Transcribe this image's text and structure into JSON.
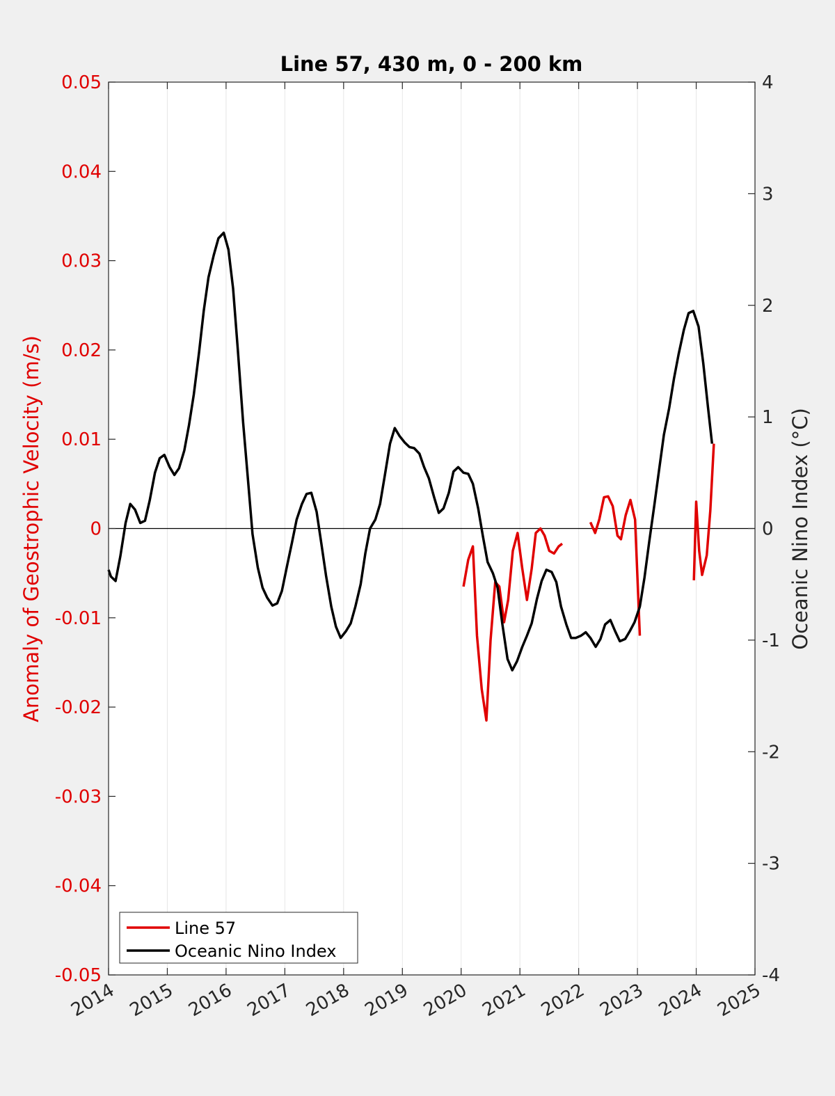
{
  "chart_data": {
    "type": "line",
    "title": "Line 57, 430 m, 0 - 200 km",
    "xlabel": "",
    "xlim": [
      2014,
      2025
    ],
    "x_ticks": [
      "2014",
      "2015",
      "2016",
      "2017",
      "2018",
      "2019",
      "2020",
      "2021",
      "2022",
      "2023",
      "2024",
      "2025"
    ],
    "y_left": {
      "label": "Anomaly of Geostrophic Velocity (m/s)",
      "color": "#e00000",
      "lim": [
        -0.05,
        0.05
      ],
      "ticks": [
        "0.05",
        "0.04",
        "0.03",
        "0.02",
        "0.01",
        "0",
        "-0.01",
        "-0.02",
        "-0.03",
        "-0.04",
        "-0.05"
      ]
    },
    "y_right": {
      "label": "Oceanic Nino Index (°C)",
      "color": "#262626",
      "lim": [
        -4,
        4
      ],
      "ticks": [
        "4",
        "3",
        "2",
        "1",
        "0",
        "-1",
        "-2",
        "-3",
        "-4"
      ]
    },
    "grid": "vertical",
    "zero_line": true,
    "legend": {
      "placement": "bottom-left"
    },
    "series": [
      {
        "name": "Line 57",
        "axis": "left",
        "color": "#e00000",
        "segments": [
          [
            [
              2020.04,
              -0.0065
            ],
            [
              2020.12,
              -0.0035
            ],
            [
              2020.2,
              -0.002
            ],
            [
              2020.27,
              -0.012
            ],
            [
              2020.35,
              -0.018
            ],
            [
              2020.43,
              -0.0215
            ],
            [
              2020.5,
              -0.0125
            ],
            [
              2020.58,
              -0.006
            ],
            [
              2020.65,
              -0.0065
            ],
            [
              2020.73,
              -0.0105
            ],
            [
              2020.8,
              -0.008
            ],
            [
              2020.88,
              -0.0025
            ],
            [
              2020.96,
              -0.0005
            ],
            [
              2021.04,
              -0.0045
            ],
            [
              2021.12,
              -0.008
            ],
            [
              2021.2,
              -0.0045
            ],
            [
              2021.27,
              -0.0005
            ],
            [
              2021.35,
              0.0
            ],
            [
              2021.42,
              -0.0008
            ],
            [
              2021.5,
              -0.0025
            ],
            [
              2021.58,
              -0.0028
            ],
            [
              2021.66,
              -0.002
            ],
            [
              2021.72,
              -0.0017
            ]
          ],
          [
            [
              2022.2,
              0.0007
            ],
            [
              2022.28,
              -0.0005
            ],
            [
              2022.35,
              0.001
            ],
            [
              2022.43,
              0.0035
            ],
            [
              2022.5,
              0.0036
            ],
            [
              2022.58,
              0.0025
            ],
            [
              2022.66,
              -0.0008
            ],
            [
              2022.72,
              -0.0012
            ],
            [
              2022.8,
              0.0015
            ],
            [
              2022.88,
              0.0032
            ],
            [
              2022.96,
              0.001
            ],
            [
              2023.04,
              -0.012
            ]
          ],
          [
            [
              2023.96,
              -0.0058
            ],
            [
              2024.0,
              0.003
            ],
            [
              2024.05,
              -0.0025
            ],
            [
              2024.1,
              -0.0052
            ],
            [
              2024.18,
              -0.003
            ],
            [
              2024.24,
              0.002
            ],
            [
              2024.3,
              0.0095
            ]
          ]
        ]
      },
      {
        "name": "Oceanic Nino Index",
        "axis": "right",
        "color": "#000000",
        "segments": [
          [
            [
              2014.0,
              -0.37
            ],
            [
              2014.04,
              -0.43
            ],
            [
              2014.12,
              -0.47
            ],
            [
              2014.2,
              -0.25
            ],
            [
              2014.29,
              0.05
            ],
            [
              2014.37,
              0.22
            ],
            [
              2014.45,
              0.17
            ],
            [
              2014.54,
              0.05
            ],
            [
              2014.62,
              0.07
            ],
            [
              2014.7,
              0.25
            ],
            [
              2014.79,
              0.5
            ],
            [
              2014.87,
              0.63
            ],
            [
              2014.95,
              0.66
            ],
            [
              2015.04,
              0.55
            ],
            [
              2015.12,
              0.48
            ],
            [
              2015.2,
              0.54
            ],
            [
              2015.29,
              0.7
            ],
            [
              2015.37,
              0.93
            ],
            [
              2015.45,
              1.2
            ],
            [
              2015.54,
              1.58
            ],
            [
              2015.62,
              1.95
            ],
            [
              2015.7,
              2.25
            ],
            [
              2015.79,
              2.45
            ],
            [
              2015.87,
              2.6
            ],
            [
              2015.96,
              2.65
            ],
            [
              2016.04,
              2.5
            ],
            [
              2016.12,
              2.15
            ],
            [
              2016.2,
              1.6
            ],
            [
              2016.29,
              0.95
            ],
            [
              2016.37,
              0.45
            ],
            [
              2016.45,
              -0.05
            ],
            [
              2016.54,
              -0.35
            ],
            [
              2016.62,
              -0.53
            ],
            [
              2016.7,
              -0.62
            ],
            [
              2016.79,
              -0.69
            ],
            [
              2016.87,
              -0.67
            ],
            [
              2016.95,
              -0.56
            ],
            [
              2017.04,
              -0.33
            ],
            [
              2017.12,
              -0.13
            ],
            [
              2017.2,
              0.08
            ],
            [
              2017.29,
              0.22
            ],
            [
              2017.37,
              0.31
            ],
            [
              2017.45,
              0.32
            ],
            [
              2017.54,
              0.15
            ],
            [
              2017.62,
              -0.13
            ],
            [
              2017.7,
              -0.42
            ],
            [
              2017.79,
              -0.7
            ],
            [
              2017.87,
              -0.88
            ],
            [
              2017.95,
              -0.98
            ],
            [
              2018.04,
              -0.92
            ],
            [
              2018.12,
              -0.85
            ],
            [
              2018.2,
              -0.7
            ],
            [
              2018.29,
              -0.5
            ],
            [
              2018.37,
              -0.22
            ],
            [
              2018.45,
              0.0
            ],
            [
              2018.54,
              0.08
            ],
            [
              2018.62,
              0.22
            ],
            [
              2018.7,
              0.47
            ],
            [
              2018.79,
              0.76
            ],
            [
              2018.87,
              0.9
            ],
            [
              2018.95,
              0.83
            ],
            [
              2019.04,
              0.77
            ],
            [
              2019.12,
              0.73
            ],
            [
              2019.2,
              0.72
            ],
            [
              2019.29,
              0.67
            ],
            [
              2019.37,
              0.55
            ],
            [
              2019.45,
              0.45
            ],
            [
              2019.54,
              0.28
            ],
            [
              2019.62,
              0.14
            ],
            [
              2019.7,
              0.18
            ],
            [
              2019.79,
              0.32
            ],
            [
              2019.87,
              0.51
            ],
            [
              2019.95,
              0.55
            ],
            [
              2020.04,
              0.5
            ],
            [
              2020.12,
              0.49
            ],
            [
              2020.2,
              0.4
            ],
            [
              2020.29,
              0.18
            ],
            [
              2020.37,
              -0.07
            ],
            [
              2020.45,
              -0.3
            ],
            [
              2020.54,
              -0.4
            ],
            [
              2020.62,
              -0.53
            ],
            [
              2020.7,
              -0.85
            ],
            [
              2020.79,
              -1.17
            ],
            [
              2020.87,
              -1.27
            ],
            [
              2020.95,
              -1.19
            ],
            [
              2021.04,
              -1.06
            ],
            [
              2021.12,
              -0.96
            ],
            [
              2021.2,
              -0.85
            ],
            [
              2021.29,
              -0.63
            ],
            [
              2021.37,
              -0.47
            ],
            [
              2021.45,
              -0.37
            ],
            [
              2021.54,
              -0.39
            ],
            [
              2021.62,
              -0.48
            ],
            [
              2021.7,
              -0.7
            ],
            [
              2021.79,
              -0.86
            ],
            [
              2021.87,
              -0.98
            ],
            [
              2021.95,
              -0.98
            ],
            [
              2022.04,
              -0.96
            ],
            [
              2022.12,
              -0.93
            ],
            [
              2022.2,
              -0.98
            ],
            [
              2022.29,
              -1.06
            ],
            [
              2022.37,
              -0.99
            ],
            [
              2022.45,
              -0.86
            ],
            [
              2022.54,
              -0.82
            ],
            [
              2022.62,
              -0.92
            ],
            [
              2022.7,
              -1.01
            ],
            [
              2022.79,
              -0.99
            ],
            [
              2022.87,
              -0.92
            ],
            [
              2022.95,
              -0.84
            ],
            [
              2023.04,
              -0.7
            ],
            [
              2023.12,
              -0.44
            ],
            [
              2023.2,
              -0.12
            ],
            [
              2023.29,
              0.22
            ],
            [
              2023.37,
              0.53
            ],
            [
              2023.45,
              0.84
            ],
            [
              2023.54,
              1.08
            ],
            [
              2023.62,
              1.34
            ],
            [
              2023.7,
              1.56
            ],
            [
              2023.79,
              1.78
            ],
            [
              2023.87,
              1.93
            ],
            [
              2023.95,
              1.95
            ],
            [
              2024.04,
              1.81
            ],
            [
              2024.12,
              1.48
            ],
            [
              2024.2,
              1.09
            ],
            [
              2024.27,
              0.76
            ]
          ]
        ]
      }
    ]
  }
}
